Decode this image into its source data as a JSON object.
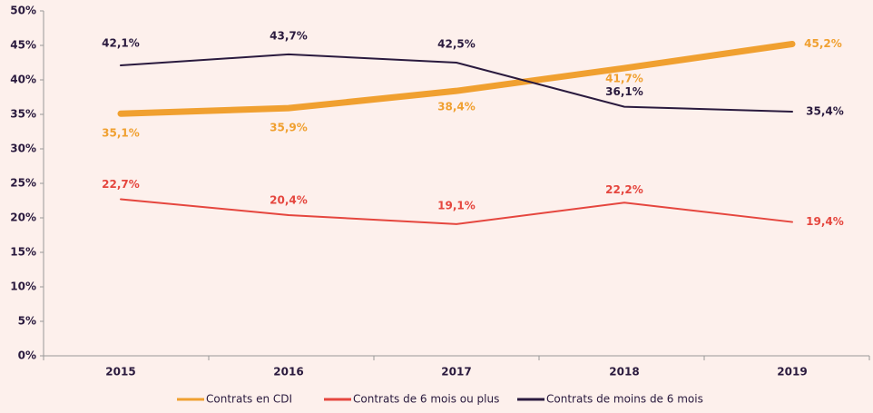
{
  "chart_data": {
    "type": "line",
    "categories": [
      "2015",
      "2016",
      "2017",
      "2018",
      "2019"
    ],
    "ylim": [
      0,
      50
    ],
    "yticks": [
      {
        "value": 0,
        "label": "0%"
      },
      {
        "value": 5,
        "label": "5%"
      },
      {
        "value": 10,
        "label": "10%"
      },
      {
        "value": 15,
        "label": "15%"
      },
      {
        "value": 20,
        "label": "20%"
      },
      {
        "value": 25,
        "label": "25%"
      },
      {
        "value": 30,
        "label": "30%"
      },
      {
        "value": 35,
        "label": "35%"
      },
      {
        "value": 40,
        "label": "40%"
      },
      {
        "value": 45,
        "label": "45%"
      },
      {
        "value": 50,
        "label": "50%"
      }
    ],
    "series": [
      {
        "name": "Contrats en CDI",
        "color": "#f0a030",
        "values": [
          35.1,
          35.9,
          38.4,
          41.7,
          45.2
        ],
        "value_labels": [
          "35,1%",
          "35,9%",
          "38,4%",
          "41,7%",
          "45,2%"
        ]
      },
      {
        "name": "Contrats de 6 mois ou plus",
        "color": "#e5463e",
        "values": [
          22.7,
          20.4,
          19.1,
          22.2,
          19.4
        ],
        "value_labels": [
          "22,7%",
          "20,4%",
          "19,1%",
          "22,2%",
          "19,4%"
        ]
      },
      {
        "name": "Contrats de moins de 6 mois",
        "color": "#2a1a3e",
        "values": [
          42.1,
          43.7,
          42.5,
          36.1,
          35.4
        ],
        "value_labels": [
          "42,1%",
          "43,7%",
          "42,5%",
          "36,1%",
          "35,4%"
        ]
      }
    ]
  }
}
